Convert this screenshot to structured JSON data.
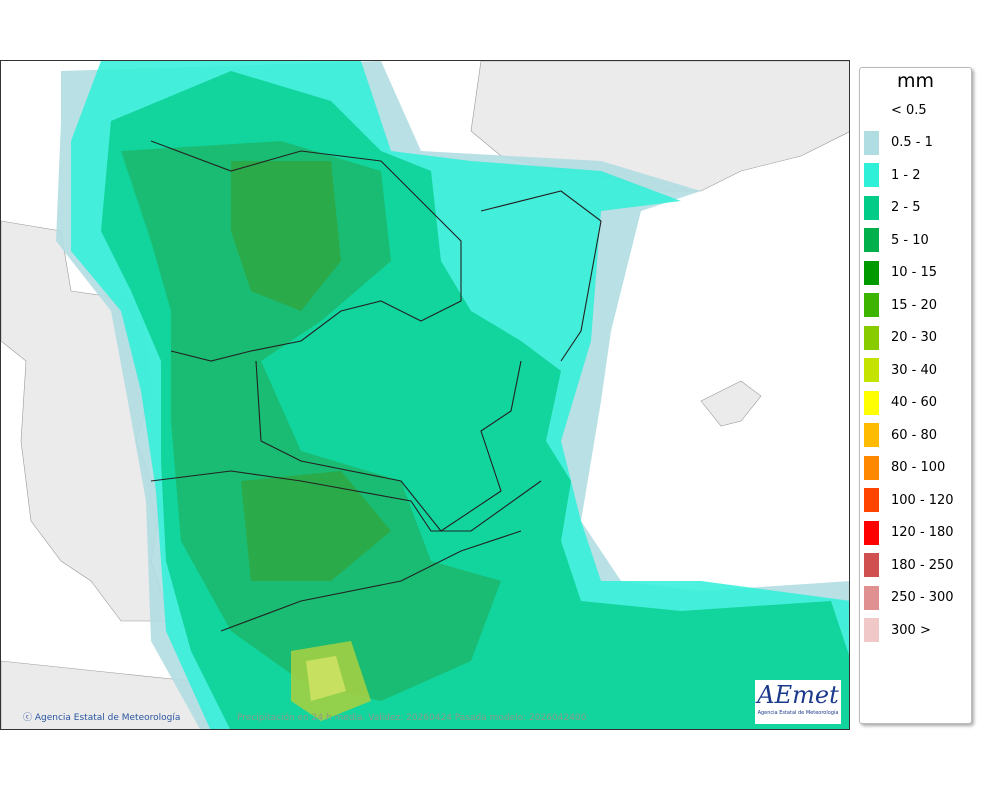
{
  "map": {
    "copyright": "Agencia Estatal de Meteorología",
    "caption": "Precipitación en 24 h media. Validez: 20260424 Pasada modelo: 2026042400",
    "logo_text": "AEmet",
    "logo_subtitle": "Agencia Estatal de Meteorología"
  },
  "legend": {
    "unit": "mm",
    "items": [
      {
        "label": "< 0.5",
        "color": ""
      },
      {
        "label": "0.5 - 1",
        "color": "#b0dde2"
      },
      {
        "label": "1 - 2",
        "color": "#2ef0d8"
      },
      {
        "label": "2 - 5",
        "color": "#00cc88"
      },
      {
        "label": "5 - 10",
        "color": "#00b04a"
      },
      {
        "label": "10 - 15",
        "color": "#009a00"
      },
      {
        "label": "15 - 20",
        "color": "#3cb400"
      },
      {
        "label": "20 - 30",
        "color": "#88cc00"
      },
      {
        "label": "30 - 40",
        "color": "#c4e400"
      },
      {
        "label": "40 - 60",
        "color": "#ffff00"
      },
      {
        "label": "60 - 80",
        "color": "#ffbb00"
      },
      {
        "label": "80 - 100",
        "color": "#ff8800"
      },
      {
        "label": "100 - 120",
        "color": "#ff4400"
      },
      {
        "label": "120 - 180",
        "color": "#ff0000"
      },
      {
        "label": "180 - 250",
        "color": "#d05050"
      },
      {
        "label": "250 - 300",
        "color": "#e09090"
      },
      {
        "label": "300 >",
        "color": "#f0c8c8"
      }
    ]
  }
}
